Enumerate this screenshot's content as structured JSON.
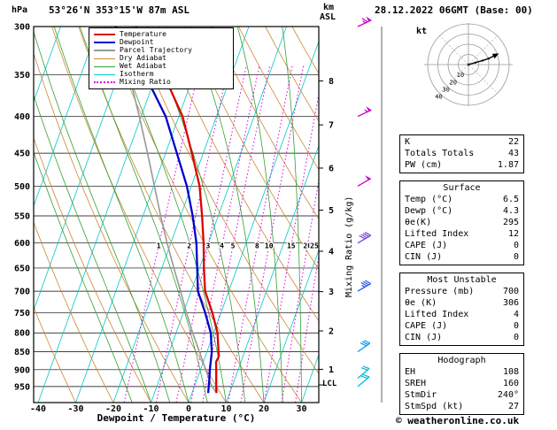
{
  "header": {
    "pressure_unit": "hPa",
    "station": "53°26'N 353°15'W 87m ASL",
    "km_label": "km",
    "asl_label": "ASL",
    "datetime": "28.12.2022 06GMT (Base: 00)"
  },
  "legend": {
    "items": [
      {
        "label": "Temperature",
        "color": "#dd0000",
        "style": "solid",
        "weight": 2
      },
      {
        "label": "Dewpoint",
        "color": "#0000cc",
        "style": "solid",
        "weight": 2
      },
      {
        "label": "Parcel Trajectory",
        "color": "#999999",
        "style": "solid",
        "weight": 2
      },
      {
        "label": "Dry Adiabat",
        "color": "#cc8833",
        "style": "solid",
        "weight": 1
      },
      {
        "label": "Wet Adiabat",
        "color": "#33a033",
        "style": "solid",
        "weight": 1
      },
      {
        "label": "Isotherm",
        "color": "#00c8c8",
        "style": "solid",
        "weight": 1
      },
      {
        "label": "Mixing Ratio",
        "color": "#dd00dd",
        "style": "dotted",
        "weight": 2
      }
    ]
  },
  "axes": {
    "pressure_ticks": [
      300,
      350,
      400,
      450,
      500,
      550,
      600,
      650,
      700,
      750,
      800,
      850,
      900,
      950
    ],
    "temp_ticks": [
      -40,
      -30,
      -20,
      -10,
      0,
      10,
      20,
      30
    ],
    "km_ticks": [
      1,
      2,
      3,
      4,
      5,
      6,
      7,
      8
    ],
    "lcl_label": "LCL",
    "xlabel": "Dewpoint / Temperature (°C)",
    "mixing_axis_label": "Mixing Ratio (g/kg)"
  },
  "chart_data": {
    "type": "line",
    "title": "Skew-T log-P sounding",
    "x_axis_label": "Dewpoint / Temperature (°C)",
    "y_axis_label": "hPa",
    "pressure_range_hpa": [
      300,
      1000
    ],
    "surface_temp_axis_range_c": [
      -40,
      35
    ],
    "lcl_hpa": 945,
    "series": [
      {
        "name": "Temperature",
        "color": "#dd0000",
        "points": [
          [
            970,
            6.5
          ],
          [
            950,
            5.8
          ],
          [
            925,
            5.0
          ],
          [
            900,
            4.2
          ],
          [
            878,
            3.4
          ],
          [
            862,
            3.6
          ],
          [
            850,
            3.1
          ],
          [
            800,
            1.0
          ],
          [
            750,
            -2.3
          ],
          [
            700,
            -6.3
          ],
          [
            650,
            -8.8
          ],
          [
            600,
            -11.3
          ],
          [
            550,
            -14.3
          ],
          [
            500,
            -17.8
          ],
          [
            450,
            -23.0
          ],
          [
            400,
            -29.0
          ],
          [
            350,
            -38.0
          ],
          [
            300,
            -50.0
          ]
        ]
      },
      {
        "name": "Dewpoint",
        "color": "#0000cc",
        "points": [
          [
            970,
            4.3
          ],
          [
            950,
            3.8
          ],
          [
            925,
            3.2
          ],
          [
            900,
            2.5
          ],
          [
            850,
            1.3
          ],
          [
            800,
            -0.8
          ],
          [
            750,
            -4.2
          ],
          [
            700,
            -8.2
          ],
          [
            650,
            -10.6
          ],
          [
            600,
            -13.2
          ],
          [
            550,
            -16.8
          ],
          [
            500,
            -21.2
          ],
          [
            450,
            -27.0
          ],
          [
            400,
            -33.5
          ],
          [
            350,
            -43.0
          ],
          [
            300,
            -55.5
          ]
        ]
      },
      {
        "name": "Parcel Trajectory",
        "color": "#999999",
        "points": [
          [
            970,
            6.5
          ],
          [
            945,
            4.3
          ],
          [
            900,
            1.4
          ],
          [
            850,
            -2.0
          ],
          [
            800,
            -5.6
          ],
          [
            750,
            -9.2
          ],
          [
            700,
            -12.8
          ],
          [
            650,
            -16.8
          ],
          [
            600,
            -21.0
          ],
          [
            550,
            -25.3
          ],
          [
            500,
            -29.8
          ],
          [
            450,
            -34.8
          ],
          [
            400,
            -40.5
          ],
          [
            350,
            -47.2
          ],
          [
            300,
            -55.0
          ]
        ]
      }
    ],
    "background": {
      "isotherms_c": [
        -110,
        -100,
        -90,
        -80,
        -70,
        -60,
        -50,
        -40,
        -30,
        -20,
        -10,
        0,
        10,
        20,
        30,
        40
      ],
      "dry_adiabats_c": [
        -30,
        -20,
        -10,
        0,
        10,
        20,
        30,
        40,
        50,
        60,
        70,
        80,
        90,
        100,
        110,
        120
      ],
      "wet_adiabats_c": [
        -15,
        -10,
        -5,
        0,
        5,
        10,
        15,
        20,
        25,
        30
      ],
      "mixing_ratio_lines_gkg": [
        1,
        2,
        3,
        4,
        5,
        8,
        10,
        15,
        20,
        25
      ]
    },
    "wind_barbs": [
      {
        "p": 300,
        "speed_kt": 65,
        "dir_deg": 245,
        "color": "#cc00cc"
      },
      {
        "p": 400,
        "speed_kt": 55,
        "dir_deg": 245,
        "color": "#cc00cc"
      },
      {
        "p": 500,
        "speed_kt": 48,
        "dir_deg": 240,
        "color": "#cc00cc"
      },
      {
        "p": 600,
        "speed_kt": 42,
        "dir_deg": 240,
        "color": "#7744dd"
      },
      {
        "p": 700,
        "speed_kt": 35,
        "dir_deg": 240,
        "color": "#3355ee"
      },
      {
        "p": 850,
        "speed_kt": 28,
        "dir_deg": 235,
        "color": "#0099ee"
      },
      {
        "p": 925,
        "speed_kt": 22,
        "dir_deg": 230,
        "color": "#00bbd4"
      },
      {
        "p": 950,
        "speed_kt": 20,
        "dir_deg": 230,
        "color": "#00bbd4"
      }
    ]
  },
  "hodograph": {
    "unit_label": "kt",
    "rings_kt": [
      10,
      20,
      30,
      40
    ],
    "trace_uv_kt": [
      [
        0,
        0
      ],
      [
        7,
        2
      ],
      [
        14,
        4
      ],
      [
        20,
        6
      ],
      [
        26,
        9
      ]
    ]
  },
  "table": {
    "sections": [
      {
        "title": null,
        "rows": [
          [
            "K",
            "22"
          ],
          [
            "Totals Totals",
            "43"
          ],
          [
            "PW (cm)",
            "1.87"
          ]
        ]
      },
      {
        "title": "Surface",
        "rows": [
          [
            "Temp (°C)",
            "6.5"
          ],
          [
            "Dewp (°C)",
            "4.3"
          ],
          [
            "θe(K)",
            "295"
          ],
          [
            "Lifted Index",
            "12"
          ],
          [
            "CAPE (J)",
            "0"
          ],
          [
            "CIN (J)",
            "0"
          ]
        ]
      },
      {
        "title": "Most Unstable",
        "rows": [
          [
            "Pressure (mb)",
            "700"
          ],
          [
            "θe (K)",
            "306"
          ],
          [
            "Lifted Index",
            "4"
          ],
          [
            "CAPE (J)",
            "0"
          ],
          [
            "CIN (J)",
            "0"
          ]
        ]
      },
      {
        "title": "Hodograph",
        "rows": [
          [
            "EH",
            "108"
          ],
          [
            "SREH",
            "160"
          ],
          [
            "StmDir",
            "240°"
          ],
          [
            "StmSpd (kt)",
            "27"
          ]
        ]
      }
    ]
  },
  "footer": {
    "copyright": "© weatheronline.co.uk"
  }
}
